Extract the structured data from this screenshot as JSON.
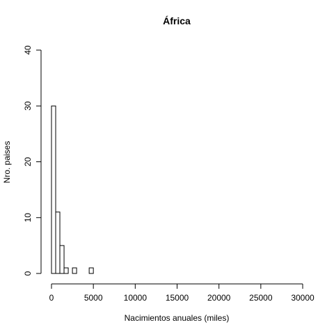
{
  "chart_data": {
    "type": "bar",
    "title": "África",
    "xlabel": "Nacimientos anuales (miles)",
    "ylabel": "Nro. paises",
    "xlim": [
      0,
      30000
    ],
    "ylim": [
      0,
      40
    ],
    "xticks": [
      0,
      5000,
      10000,
      15000,
      20000,
      25000,
      30000
    ],
    "yticks": [
      0,
      10,
      20,
      30,
      40
    ],
    "bin_width": 500,
    "bins": [
      {
        "x0": 0,
        "x1": 500,
        "count": 30
      },
      {
        "x0": 500,
        "x1": 1000,
        "count": 11
      },
      {
        "x0": 1000,
        "x1": 1500,
        "count": 5
      },
      {
        "x0": 1500,
        "x1": 2000,
        "count": 1
      },
      {
        "x0": 2000,
        "x1": 2500,
        "count": 0
      },
      {
        "x0": 2500,
        "x1": 3000,
        "count": 1
      },
      {
        "x0": 3000,
        "x1": 3500,
        "count": 0
      },
      {
        "x0": 3500,
        "x1": 4000,
        "count": 0
      },
      {
        "x0": 4000,
        "x1": 4500,
        "count": 0
      },
      {
        "x0": 4500,
        "x1": 5000,
        "count": 1
      }
    ],
    "grid": false,
    "legend": "none"
  }
}
